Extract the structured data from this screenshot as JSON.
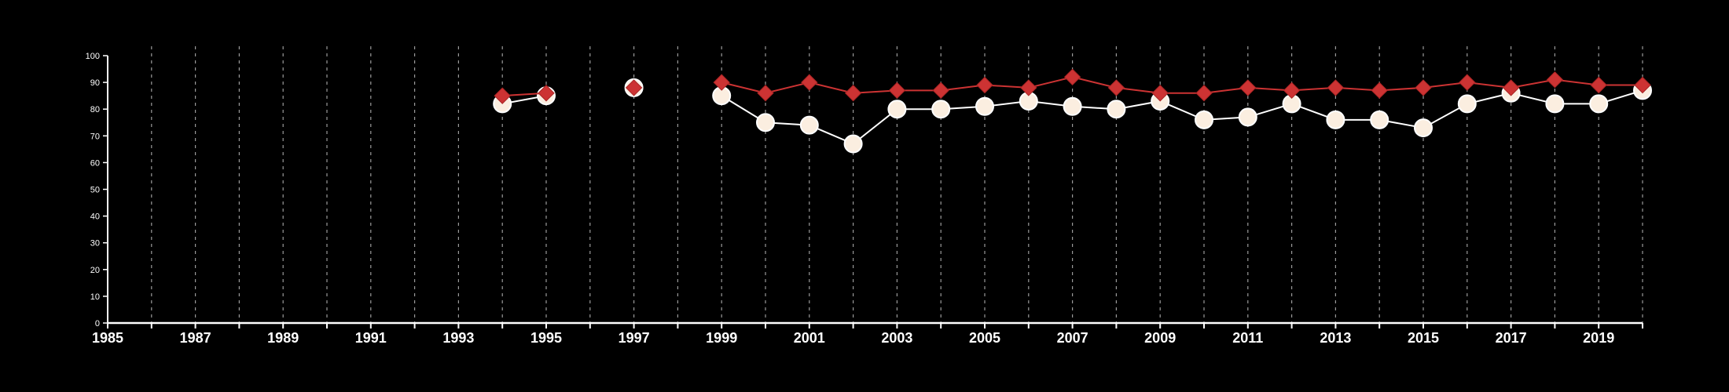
{
  "chart_data": {
    "type": "line",
    "title": "",
    "xlabel": "",
    "ylabel": "",
    "xlim": [
      1985,
      2020
    ],
    "ylim": [
      0,
      100
    ],
    "y_ticks": [
      "0",
      "10",
      "20",
      "30",
      "40",
      "50",
      "60",
      "70",
      "80",
      "90",
      "100"
    ],
    "x_ticks": [
      "1985",
      "1987",
      "1989",
      "1991",
      "1993",
      "1995",
      "1997",
      "1999",
      "2001",
      "2003",
      "2005",
      "2007",
      "2009",
      "2011",
      "2013",
      "2015",
      "2017",
      "2019"
    ],
    "grid": "vertical dashed at every year",
    "legend": "none",
    "series": [
      {
        "marker": "diamond",
        "color": "#cc3333",
        "points": [
          {
            "x": 1994,
            "y": 85
          },
          {
            "x": 1995,
            "y": 86
          },
          {
            "x": 1997,
            "y": 88
          },
          {
            "x": 1999,
            "y": 90
          },
          {
            "x": 2000,
            "y": 86
          },
          {
            "x": 2001,
            "y": 90
          },
          {
            "x": 2002,
            "y": 86
          },
          {
            "x": 2003,
            "y": 87
          },
          {
            "x": 2004,
            "y": 87
          },
          {
            "x": 2005,
            "y": 89
          },
          {
            "x": 2006,
            "y": 88
          },
          {
            "x": 2007,
            "y": 92
          },
          {
            "x": 2008,
            "y": 88
          },
          {
            "x": 2009,
            "y": 86
          },
          {
            "x": 2010,
            "y": 86
          },
          {
            "x": 2011,
            "y": 88
          },
          {
            "x": 2012,
            "y": 87
          },
          {
            "x": 2013,
            "y": 88
          },
          {
            "x": 2014,
            "y": 87
          },
          {
            "x": 2015,
            "y": 88
          },
          {
            "x": 2016,
            "y": 90
          },
          {
            "x": 2017,
            "y": 88
          },
          {
            "x": 2018,
            "y": 91
          },
          {
            "x": 2019,
            "y": 89
          },
          {
            "x": 2020,
            "y": 89
          }
        ]
      },
      {
        "marker": "circle",
        "color": "#fbeee0",
        "points": [
          {
            "x": 1994,
            "y": 82
          },
          {
            "x": 1995,
            "y": 85
          },
          {
            "x": 1997,
            "y": 88
          },
          {
            "x": 1999,
            "y": 85
          },
          {
            "x": 2000,
            "y": 75
          },
          {
            "x": 2001,
            "y": 74
          },
          {
            "x": 2002,
            "y": 67
          },
          {
            "x": 2003,
            "y": 80
          },
          {
            "x": 2004,
            "y": 80
          },
          {
            "x": 2005,
            "y": 81
          },
          {
            "x": 2006,
            "y": 83
          },
          {
            "x": 2007,
            "y": 81
          },
          {
            "x": 2008,
            "y": 80
          },
          {
            "x": 2009,
            "y": 83
          },
          {
            "x": 2010,
            "y": 76
          },
          {
            "x": 2011,
            "y": 77
          },
          {
            "x": 2012,
            "y": 82
          },
          {
            "x": 2013,
            "y": 76
          },
          {
            "x": 2014,
            "y": 76
          },
          {
            "x": 2015,
            "y": 73
          },
          {
            "x": 2016,
            "y": 82
          },
          {
            "x": 2017,
            "y": 86
          },
          {
            "x": 2018,
            "y": 82
          },
          {
            "x": 2019,
            "y": 82
          },
          {
            "x": 2020,
            "y": 87
          }
        ]
      }
    ]
  }
}
